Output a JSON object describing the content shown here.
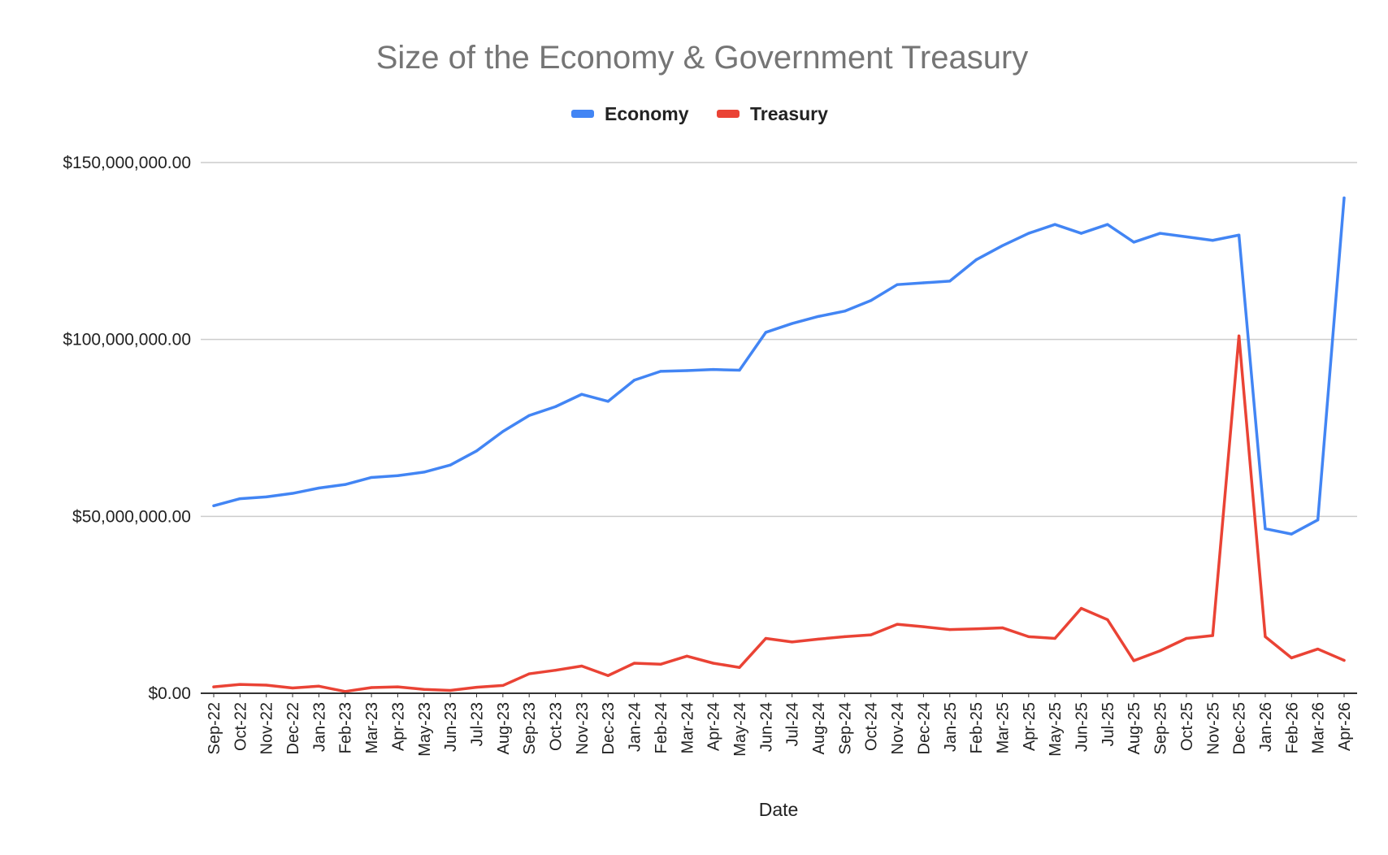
{
  "chart_data": {
    "type": "line",
    "title": "Size of the Economy & Government Treasury",
    "xlabel": "Date",
    "ylabel": "",
    "ylim": [
      0,
      150000000
    ],
    "yticks": [
      0,
      50000000,
      100000000,
      150000000
    ],
    "ytick_labels": [
      "$0.00",
      "$50,000,000.00",
      "$100,000,000.00",
      "$150,000,000.00"
    ],
    "grid": true,
    "legend": "top-center",
    "categories": [
      "Sep-22",
      "Oct-22",
      "Nov-22",
      "Dec-22",
      "Jan-23",
      "Feb-23",
      "Mar-23",
      "Apr-23",
      "May-23",
      "Jun-23",
      "Jul-23",
      "Aug-23",
      "Sep-23",
      "Oct-23",
      "Nov-23",
      "Dec-23",
      "Jan-24",
      "Feb-24",
      "Mar-24",
      "Apr-24",
      "May-24",
      "Jun-24",
      "Jul-24",
      "Aug-24",
      "Sep-24",
      "Oct-24",
      "Nov-24",
      "Dec-24",
      "Jan-25",
      "Feb-25",
      "Mar-25",
      "Apr-25",
      "May-25",
      "Jun-25",
      "Jul-25",
      "Aug-25",
      "Sep-25",
      "Oct-25",
      "Nov-25",
      "Dec-25",
      "Jan-26",
      "Feb-26",
      "Mar-26",
      "Apr-26"
    ],
    "series": [
      {
        "name": "Economy",
        "color": "#4285f4",
        "values": [
          53000000,
          55000000,
          55500000,
          56500000,
          58000000,
          59000000,
          61000000,
          61500000,
          62500000,
          64500000,
          68500000,
          74000000,
          78500000,
          81000000,
          84500000,
          82500000,
          88500000,
          91000000,
          91200000,
          91500000,
          91300000,
          102000000,
          104500000,
          106500000,
          108000000,
          111000000,
          115500000,
          116000000,
          116500000,
          122500000,
          126500000,
          130000000,
          132500000,
          130000000,
          132500000,
          127500000,
          130000000,
          129000000,
          128000000,
          129500000,
          46500000,
          45000000,
          49000000,
          140000000
        ]
      },
      {
        "name": "Treasury",
        "color": "#ea4335",
        "values": [
          1800000,
          2500000,
          2300000,
          1500000,
          2000000,
          500000,
          1600000,
          1800000,
          1100000,
          800000,
          1700000,
          2200000,
          5500000,
          6500000,
          7700000,
          5000000,
          8500000,
          8200000,
          10500000,
          8500000,
          7300000,
          15500000,
          14500000,
          15300000,
          16000000,
          16500000,
          19500000,
          18800000,
          18000000,
          18200000,
          18500000,
          16000000,
          15500000,
          24000000,
          20800000,
          9200000,
          12000000,
          15500000,
          16300000,
          101000000,
          16000000,
          10000000,
          12500000,
          9300000
        ]
      }
    ]
  }
}
